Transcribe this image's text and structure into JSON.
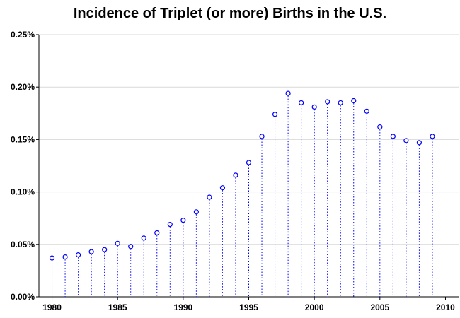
{
  "chart_data": {
    "type": "scatter",
    "title": "Incidence of Triplet (or more) Births in the U.S.",
    "xlabel": "",
    "ylabel": "",
    "xlim": [
      1979,
      2011
    ],
    "ylim": [
      0,
      0.25
    ],
    "x_ticks": [
      1980,
      1985,
      1990,
      1995,
      2000,
      2005,
      2010
    ],
    "x_tick_labels": [
      "1980",
      "1985",
      "1990",
      "1995",
      "2000",
      "2005",
      "2010"
    ],
    "y_ticks": [
      0,
      0.05,
      0.1,
      0.15,
      0.2,
      0.25
    ],
    "y_tick_labels": [
      "0.00%",
      "0.05%",
      "0.10%",
      "0.15%",
      "0.20%",
      "0.25%"
    ],
    "grid": "horizontal",
    "series": [
      {
        "marker": "open-circle",
        "drop_lines": "dotted",
        "color": "#0000ff",
        "x": [
          1980,
          1981,
          1982,
          1983,
          1984,
          1985,
          1986,
          1987,
          1988,
          1989,
          1990,
          1991,
          1992,
          1993,
          1994,
          1995,
          1996,
          1997,
          1998,
          1999,
          2000,
          2001,
          2002,
          2003,
          2004,
          2005,
          2006,
          2007,
          2008,
          2009
        ],
        "y": [
          0.037,
          0.038,
          0.04,
          0.043,
          0.045,
          0.051,
          0.048,
          0.056,
          0.061,
          0.069,
          0.073,
          0.081,
          0.095,
          0.104,
          0.116,
          0.128,
          0.153,
          0.174,
          0.194,
          0.185,
          0.181,
          0.186,
          0.185,
          0.187,
          0.177,
          0.162,
          0.153,
          0.149,
          0.147,
          0.153
        ]
      }
    ]
  }
}
